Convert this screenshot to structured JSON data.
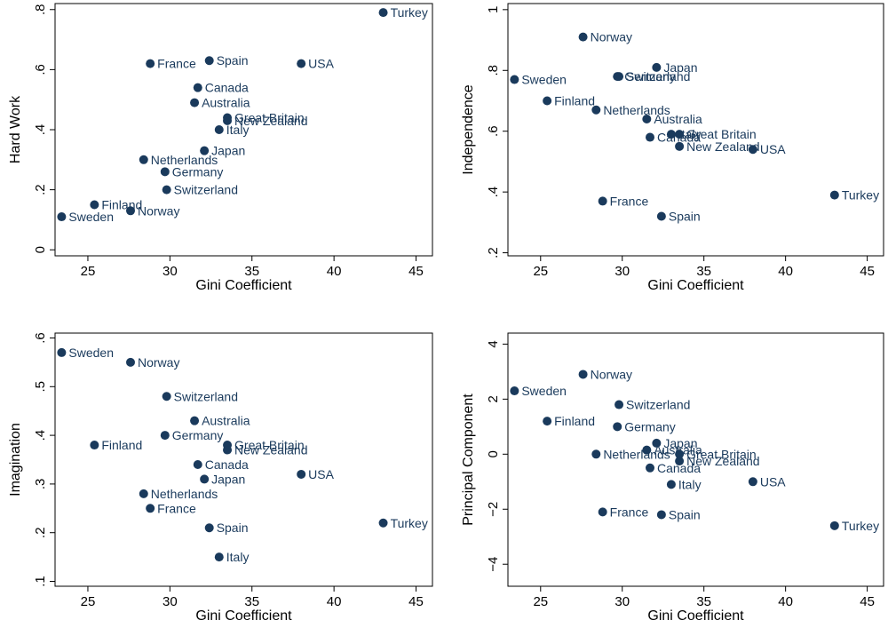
{
  "chart_data": [
    {
      "type": "scatter",
      "xlabel": "Gini Coefficient",
      "ylabel": "Hard Work",
      "xlim": [
        23,
        46
      ],
      "ylim": [
        -0.02,
        0.82
      ],
      "xticks": [
        25,
        30,
        35,
        40,
        45
      ],
      "xtick_labels": [
        "25",
        "30",
        "35",
        "40",
        "45"
      ],
      "yticks": [
        0,
        0.2,
        0.4,
        0.6,
        0.8
      ],
      "ytick_labels": [
        "0",
        ".2",
        ".4",
        ".6",
        ".8"
      ],
      "points": [
        {
          "label": "Turkey",
          "x": 43.0,
          "y": 0.79
        },
        {
          "label": "France",
          "x": 28.8,
          "y": 0.62
        },
        {
          "label": "Spain",
          "x": 32.4,
          "y": 0.63
        },
        {
          "label": "USA",
          "x": 38.0,
          "y": 0.62
        },
        {
          "label": "Canada",
          "x": 31.7,
          "y": 0.54
        },
        {
          "label": "Australia",
          "x": 31.5,
          "y": 0.49
        },
        {
          "label": "Great Britain",
          "x": 33.5,
          "y": 0.44
        },
        {
          "label": "New Zealand",
          "x": 33.5,
          "y": 0.43
        },
        {
          "label": "Italy",
          "x": 33.0,
          "y": 0.4
        },
        {
          "label": "Japan",
          "x": 32.1,
          "y": 0.33
        },
        {
          "label": "Netherlands",
          "x": 28.4,
          "y": 0.3
        },
        {
          "label": "Germany",
          "x": 29.7,
          "y": 0.26
        },
        {
          "label": "Switzerland",
          "x": 29.8,
          "y": 0.2
        },
        {
          "label": "Finland",
          "x": 25.4,
          "y": 0.15
        },
        {
          "label": "Norway",
          "x": 27.6,
          "y": 0.13
        },
        {
          "label": "Sweden",
          "x": 23.4,
          "y": 0.11
        }
      ]
    },
    {
      "type": "scatter",
      "xlabel": "Gini Coefficient",
      "ylabel": "Independence",
      "xlim": [
        23,
        46
      ],
      "ylim": [
        0.19,
        1.02
      ],
      "xticks": [
        25,
        30,
        35,
        40,
        45
      ],
      "xtick_labels": [
        "25",
        "30",
        "35",
        "40",
        "45"
      ],
      "yticks": [
        0.2,
        0.4,
        0.6,
        0.8,
        1.0
      ],
      "ytick_labels": [
        ".2",
        ".4",
        ".6",
        ".8",
        "1"
      ],
      "points": [
        {
          "label": "Norway",
          "x": 27.6,
          "y": 0.91
        },
        {
          "label": "Japan",
          "x": 32.1,
          "y": 0.81
        },
        {
          "label": "Germany",
          "x": 29.7,
          "y": 0.78
        },
        {
          "label": "Switzerland",
          "x": 29.8,
          "y": 0.78
        },
        {
          "label": "Sweden",
          "x": 23.4,
          "y": 0.77
        },
        {
          "label": "Finland",
          "x": 25.4,
          "y": 0.7
        },
        {
          "label": "Netherlands",
          "x": 28.4,
          "y": 0.67
        },
        {
          "label": "Australia",
          "x": 31.5,
          "y": 0.64
        },
        {
          "label": "Italy",
          "x": 33.0,
          "y": 0.59
        },
        {
          "label": "Great Britain",
          "x": 33.5,
          "y": 0.59
        },
        {
          "label": "Canada",
          "x": 31.7,
          "y": 0.58
        },
        {
          "label": "New Zealand",
          "x": 33.5,
          "y": 0.55
        },
        {
          "label": "USA",
          "x": 38.0,
          "y": 0.54
        },
        {
          "label": "Turkey",
          "x": 43.0,
          "y": 0.39
        },
        {
          "label": "France",
          "x": 28.8,
          "y": 0.37
        },
        {
          "label": "Spain",
          "x": 32.4,
          "y": 0.32
        }
      ]
    },
    {
      "type": "scatter",
      "xlabel": "Gini Coefficient",
      "ylabel": "Imagination",
      "xlim": [
        23,
        46
      ],
      "ylim": [
        0.09,
        0.61
      ],
      "xticks": [
        25,
        30,
        35,
        40,
        45
      ],
      "xtick_labels": [
        "25",
        "30",
        "35",
        "40",
        "45"
      ],
      "yticks": [
        0.1,
        0.2,
        0.3,
        0.4,
        0.5,
        0.6
      ],
      "ytick_labels": [
        ".1",
        ".2",
        ".3",
        ".4",
        ".5",
        ".6"
      ],
      "points": [
        {
          "label": "Sweden",
          "x": 23.4,
          "y": 0.57
        },
        {
          "label": "Norway",
          "x": 27.6,
          "y": 0.55
        },
        {
          "label": "Switzerland",
          "x": 29.8,
          "y": 0.48
        },
        {
          "label": "Australia",
          "x": 31.5,
          "y": 0.43
        },
        {
          "label": "Germany",
          "x": 29.7,
          "y": 0.4
        },
        {
          "label": "Finland",
          "x": 25.4,
          "y": 0.38
        },
        {
          "label": "Great Britain",
          "x": 33.5,
          "y": 0.38
        },
        {
          "label": "New Zealand",
          "x": 33.5,
          "y": 0.37
        },
        {
          "label": "Canada",
          "x": 31.7,
          "y": 0.34
        },
        {
          "label": "USA",
          "x": 38.0,
          "y": 0.32
        },
        {
          "label": "Japan",
          "x": 32.1,
          "y": 0.31
        },
        {
          "label": "Netherlands",
          "x": 28.4,
          "y": 0.28
        },
        {
          "label": "France",
          "x": 28.8,
          "y": 0.25
        },
        {
          "label": "Turkey",
          "x": 43.0,
          "y": 0.22
        },
        {
          "label": "Spain",
          "x": 32.4,
          "y": 0.21
        },
        {
          "label": "Italy",
          "x": 33.0,
          "y": 0.15
        }
      ]
    },
    {
      "type": "scatter",
      "xlabel": "Gini Coefficient",
      "ylabel": "Principal Component",
      "xlim": [
        23,
        46
      ],
      "ylim": [
        -4.8,
        4.4
      ],
      "xticks": [
        25,
        30,
        35,
        40,
        45
      ],
      "xtick_labels": [
        "25",
        "30",
        "35",
        "40",
        "45"
      ],
      "yticks": [
        -4,
        -2,
        0,
        2,
        4
      ],
      "ytick_labels": [
        "−4",
        "−2",
        "0",
        "2",
        "4"
      ],
      "points": [
        {
          "label": "Norway",
          "x": 27.6,
          "y": 2.9
        },
        {
          "label": "Sweden",
          "x": 23.4,
          "y": 2.3
        },
        {
          "label": "Switzerland",
          "x": 29.8,
          "y": 1.8
        },
        {
          "label": "Finland",
          "x": 25.4,
          "y": 1.2
        },
        {
          "label": "Germany",
          "x": 29.7,
          "y": 1.0
        },
        {
          "label": "Japan",
          "x": 32.1,
          "y": 0.4
        },
        {
          "label": "Australia",
          "x": 31.5,
          "y": 0.15
        },
        {
          "label": "Netherlands",
          "x": 28.4,
          "y": 0.0
        },
        {
          "label": "Great Britain",
          "x": 33.5,
          "y": 0.0
        },
        {
          "label": "Italy",
          "x": 33.0,
          "y": -1.1
        },
        {
          "label": "New Zealand",
          "x": 33.5,
          "y": -0.25
        },
        {
          "label": "Canada",
          "x": 31.7,
          "y": -0.5
        },
        {
          "label": "USA",
          "x": 38.0,
          "y": -1.0
        },
        {
          "label": "France",
          "x": 28.8,
          "y": -2.1
        },
        {
          "label": "Spain",
          "x": 32.4,
          "y": -2.2
        },
        {
          "label": "Turkey",
          "x": 43.0,
          "y": -2.6
        }
      ]
    }
  ],
  "colors": {
    "marker": "#1a3a5c",
    "label": "#1a3a5c",
    "axis": "#000000"
  }
}
